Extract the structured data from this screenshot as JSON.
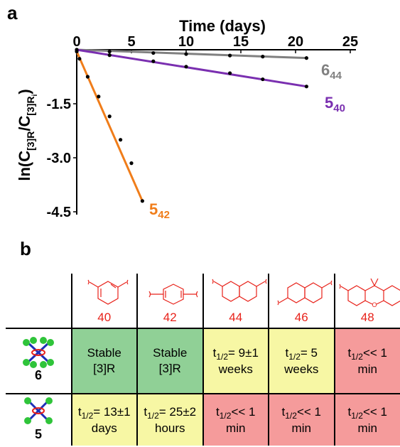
{
  "panel_labels": {
    "a": "a",
    "b": "b"
  },
  "chart_data": {
    "type": "scatter",
    "title": "",
    "xlabel": "Time (days)",
    "ylabel_parts": {
      "prefix": "ln(C",
      "sub1": "[3]R",
      "mid": "/C",
      "sub2": "[3]R",
      "sub3": "i",
      "suffix": ")"
    },
    "xlim": [
      0,
      25
    ],
    "ylim": [
      -4.5,
      0
    ],
    "x_ticks": [
      "0",
      "5",
      "10",
      "15",
      "20",
      "25"
    ],
    "x_tick_values": [
      0,
      5,
      10,
      15,
      20,
      25
    ],
    "y_ticks": [
      "-1.5",
      "-3.0",
      "-4.5"
    ],
    "y_tick_values": [
      -1.5,
      -3.0,
      -4.5
    ],
    "grid": false,
    "series": [
      {
        "name_main": "6",
        "name_sub": "44",
        "color": "#808080",
        "x": [
          0,
          3,
          7,
          10,
          14,
          17,
          21
        ],
        "y": [
          0,
          -0.05,
          -0.09,
          -0.12,
          -0.16,
          -0.19,
          -0.23
        ],
        "fit": [
          [
            0,
            0
          ],
          [
            21,
            -0.23
          ]
        ]
      },
      {
        "name_main": "5",
        "name_sub": "40",
        "color": "#7a2fb0",
        "x": [
          0,
          3,
          7,
          10,
          14,
          17,
          21
        ],
        "y": [
          0,
          -0.15,
          -0.32,
          -0.47,
          -0.65,
          -0.82,
          -1.02
        ],
        "fit": [
          [
            0,
            0
          ],
          [
            21,
            -1.02
          ]
        ]
      },
      {
        "name_main": "5",
        "name_sub": "42",
        "color": "#f07d1a",
        "x": [
          0,
          0.25,
          1,
          2,
          3,
          4,
          5,
          6
        ],
        "y": [
          -0.05,
          -0.25,
          -0.75,
          -1.3,
          -1.85,
          -2.5,
          -3.15,
          -4.2
        ],
        "fit": [
          [
            0,
            -0.05
          ],
          [
            6,
            -4.2
          ]
        ]
      }
    ]
  },
  "table": {
    "linkers": [
      "40",
      "42",
      "44",
      "46",
      "48"
    ],
    "rows": [
      {
        "compound": "6",
        "cells": [
          {
            "lines": [
              "Stable",
              "[3]R"
            ],
            "color": "#90d096"
          },
          {
            "lines": [
              "Stable",
              "[3]R"
            ],
            "color": "#90d096"
          },
          {
            "t": "t",
            "sub": "1/2",
            "rest": "= 9±1",
            "line2": "weeks",
            "color": "#f7f7a4"
          },
          {
            "t": "t",
            "sub": "1/2",
            "rest": "= 5",
            "line2": "weeks",
            "color": "#f7f7a4"
          },
          {
            "t": "t",
            "sub": "1/2",
            "rest": "<< 1",
            "line2": "min",
            "color": "#f59b9b"
          }
        ]
      },
      {
        "compound": "5",
        "cells": [
          {
            "t": "t",
            "sub": "1/2",
            "rest": "= 13±1",
            "line2": "days",
            "color": "#f7f7a4"
          },
          {
            "t": "t",
            "sub": "1/2",
            "rest": "= 25±2",
            "line2": "hours",
            "color": "#f7f7a4"
          },
          {
            "t": "t",
            "sub": "1/2",
            "rest": "<< 1",
            "line2": "min",
            "color": "#f59b9b"
          },
          {
            "t": "t",
            "sub": "1/2",
            "rest": "<< 1",
            "line2": "min",
            "color": "#f59b9b"
          },
          {
            "t": "t",
            "sub": "1/2",
            "rest": "<< 1",
            "line2": "min",
            "color": "#f59b9b"
          }
        ]
      }
    ]
  }
}
